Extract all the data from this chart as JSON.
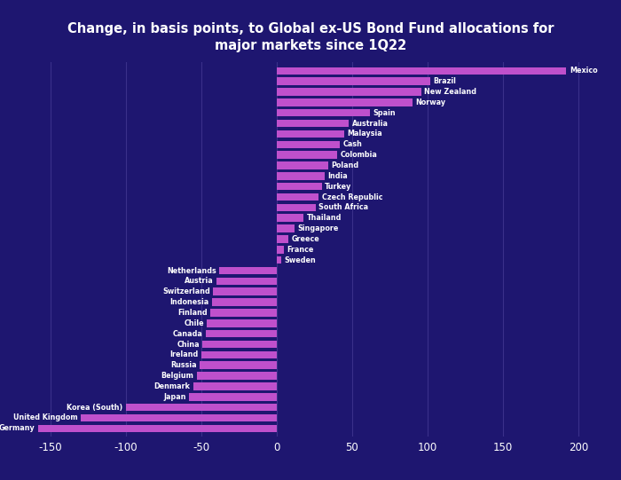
{
  "title": "Change, in basis points, to Global ex-US Bond Fund allocations for\nmajor markets since 1Q22",
  "background_color": "#1e1670",
  "bar_color": "#bf50cc",
  "text_color": "#ffffff",
  "grid_color": "#3a308a",
  "xlim": [
    -175,
    220
  ],
  "xticks": [
    -150,
    -100,
    -50,
    0,
    50,
    100,
    150,
    200
  ],
  "categories": [
    "Germany",
    "United Kingdom",
    "Korea (South)",
    "Japan",
    "Denmark",
    "Belgium",
    "Russia",
    "Ireland",
    "China",
    "Canada",
    "Chile",
    "Finland",
    "Indonesia",
    "Switzerland",
    "Austria",
    "Netherlands",
    "Sweden",
    "France",
    "Greece",
    "Singapore",
    "Thailand",
    "South Africa",
    "Czech Republic",
    "Turkey",
    "India",
    "Poland",
    "Colombia",
    "Cash",
    "Malaysia",
    "Australia",
    "Spain",
    "Norway",
    "New Zealand",
    "Brazil",
    "Mexico"
  ],
  "values": [
    -158,
    -130,
    -100,
    -58,
    -55,
    -53,
    -51,
    -50,
    -49,
    -47,
    -46,
    -44,
    -43,
    -42,
    -40,
    -38,
    3,
    5,
    8,
    12,
    18,
    26,
    28,
    30,
    32,
    34,
    40,
    42,
    45,
    48,
    62,
    90,
    96,
    102,
    192
  ]
}
